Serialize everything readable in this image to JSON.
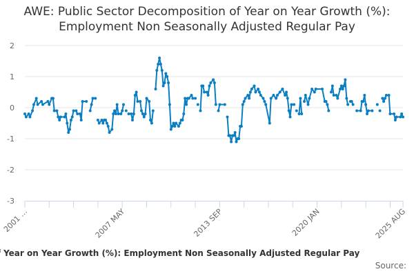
{
  "chart_data": {
    "type": "line",
    "title": "AWE: Public Sector Decomposition of Year on Year Growth (%): Employment Non Seasonally Adjusted Regular Pay",
    "caption": "AWE: Public Sector Decomposition of Year on Year Growth (%): Employment Non Seasonally Adjusted Regular Pay",
    "source_label": "Source:",
    "xlabel": "",
    "ylabel": "",
    "x_range": [
      "2001-01",
      "2025-08"
    ],
    "ylim": [
      -3,
      2
    ],
    "y_ticks": [
      2,
      1,
      0,
      -1,
      -2,
      -3
    ],
    "x_tick_labels": [
      {
        "date": "2001-01",
        "label": "2001 …"
      },
      {
        "date": "2007-05",
        "label": "2007 MAY"
      },
      {
        "date": "2013-09",
        "label": "2013 SEP"
      },
      {
        "date": "2020-01",
        "label": "2020 JAN"
      },
      {
        "date": "2025-08",
        "label": "2025 AUG"
      }
    ],
    "grid": true,
    "legend": "none",
    "colors": {
      "series": "#0a7ec2",
      "grid": "#e6e6e6",
      "axis": "#ccd6eb"
    },
    "series": [
      {
        "points": [
          [
            "2001-01",
            -0.2
          ],
          [
            "2001-02",
            -0.3
          ],
          [
            "2001-04",
            -0.2
          ],
          [
            "2001-05",
            -0.3
          ],
          [
            "2001-07",
            -0.1
          ],
          [
            "2001-08",
            0.1
          ],
          [
            "2001-10",
            0.3
          ],
          [
            "2001-11",
            0.1
          ],
          [
            "2002-02",
            0.2
          ],
          [
            "2002-03",
            0.1
          ],
          [
            "2002-07",
            0.2
          ],
          [
            "2002-08",
            0.1
          ],
          [
            "2002-10",
            0.3
          ],
          [
            "2002-11",
            0.3
          ],
          [
            "2002-12",
            -0.1
          ],
          [
            "2003-02",
            -0.1
          ],
          [
            "2003-03",
            -0.3
          ],
          [
            "2003-04",
            -0.4
          ],
          [
            "2003-05",
            -0.3
          ],
          [
            "2003-08",
            -0.3
          ],
          [
            "2003-09",
            -0.2
          ],
          [
            "2003-10",
            -0.5
          ],
          [
            "2003-11",
            -0.8
          ],
          [
            "2003-12",
            -0.7
          ],
          [
            "2004-01",
            -0.4
          ],
          [
            "2004-02",
            -0.3
          ],
          [
            "2004-03",
            -0.1
          ],
          [
            "2004-05",
            -0.1
          ],
          [
            "2004-06",
            -0.2
          ],
          [
            "2004-08",
            -0.2
          ],
          [
            "2004-09",
            -0.4
          ],
          [
            "2004-10",
            0.2
          ],
          [
            "2005-01",
            0.2
          ],
          [
            "2005-02",
            null
          ],
          [
            "2005-04",
            -0.1
          ],
          [
            "2005-05",
            0.1
          ],
          [
            "2005-06",
            0.3
          ],
          [
            "2005-08",
            0.3
          ],
          [
            "2005-09",
            null
          ],
          [
            "2005-10",
            -0.4
          ],
          [
            "2005-11",
            -0.5
          ],
          [
            "2006-01",
            -0.4
          ],
          [
            "2006-02",
            -0.5
          ],
          [
            "2006-03",
            -0.4
          ],
          [
            "2006-04",
            -0.4
          ],
          [
            "2006-05",
            -0.5
          ],
          [
            "2006-06",
            -0.6
          ],
          [
            "2006-07",
            -0.8
          ],
          [
            "2006-09",
            -0.7
          ],
          [
            "2006-10",
            -0.2
          ],
          [
            "2006-11",
            -0.1
          ],
          [
            "2006-12",
            -0.2
          ],
          [
            "2007-01",
            0.1
          ],
          [
            "2007-02",
            -0.2
          ],
          [
            "2007-04",
            -0.2
          ],
          [
            "2007-05",
            -0.1
          ],
          [
            "2007-06",
            0.1
          ],
          [
            "2007-07",
            null
          ],
          [
            "2007-08",
            -0.1
          ],
          [
            "2007-09",
            null
          ],
          [
            "2007-10",
            -0.2
          ],
          [
            "2007-12",
            -0.2
          ],
          [
            "2008-01",
            -0.4
          ],
          [
            "2008-02",
            -0.2
          ],
          [
            "2008-03",
            0.4
          ],
          [
            "2008-04",
            0.5
          ],
          [
            "2008-05",
            0.2
          ],
          [
            "2008-07",
            0.2
          ],
          [
            "2008-08",
            -0.1
          ],
          [
            "2008-09",
            -0.2
          ],
          [
            "2008-10",
            -0.3
          ],
          [
            "2008-11",
            -0.2
          ],
          [
            "2008-12",
            0.3
          ],
          [
            "2009-02",
            0.2
          ],
          [
            "2009-03",
            -0.4
          ],
          [
            "2009-04",
            -0.5
          ],
          [
            "2009-05",
            -0.1
          ],
          [
            "2009-06",
            null
          ],
          [
            "2009-07",
            0.6
          ],
          [
            "2009-08",
            1.2
          ],
          [
            "2009-09",
            1.4
          ],
          [
            "2009-10",
            1.6
          ],
          [
            "2009-11",
            1.4
          ],
          [
            "2009-12",
            1.2
          ],
          [
            "2010-01",
            0.7
          ],
          [
            "2010-02",
            0.8
          ],
          [
            "2010-03",
            1.1
          ],
          [
            "2010-04",
            1.0
          ],
          [
            "2010-05",
            0.8
          ],
          [
            "2010-06",
            0.1
          ],
          [
            "2010-07",
            -0.7
          ],
          [
            "2010-08",
            -0.6
          ],
          [
            "2010-09",
            -0.5
          ],
          [
            "2010-10",
            -0.6
          ],
          [
            "2010-11",
            -0.5
          ],
          [
            "2011-01",
            -0.6
          ],
          [
            "2011-02",
            -0.5
          ],
          [
            "2011-03",
            -0.4
          ],
          [
            "2011-04",
            -0.4
          ],
          [
            "2011-05",
            -0.2
          ],
          [
            "2011-06",
            0.3
          ],
          [
            "2011-07",
            0.1
          ],
          [
            "2011-08",
            0.3
          ],
          [
            "2011-09",
            0.3
          ],
          [
            "2011-11",
            0.4
          ],
          [
            "2011-12",
            0.3
          ],
          [
            "2012-02",
            0.3
          ],
          [
            "2012-03",
            null
          ],
          [
            "2012-04",
            0.1
          ],
          [
            "2012-05",
            null
          ],
          [
            "2012-06",
            -0.1
          ],
          [
            "2012-07",
            0.7
          ],
          [
            "2012-08",
            0.7
          ],
          [
            "2012-09",
            0.5
          ],
          [
            "2012-11",
            0.5
          ],
          [
            "2012-12",
            0.4
          ],
          [
            "2013-01",
            0.7
          ],
          [
            "2013-02",
            0.8
          ],
          [
            "2013-04",
            0.9
          ],
          [
            "2013-05",
            0.8
          ],
          [
            "2013-06",
            0.1
          ],
          [
            "2013-07",
            null
          ],
          [
            "2013-08",
            -0.1
          ],
          [
            "2013-09",
            0.1
          ],
          [
            "2014-01",
            0.1
          ],
          [
            "2014-02",
            null
          ],
          [
            "2014-03",
            -0.3
          ],
          [
            "2014-04",
            -0.9
          ],
          [
            "2014-05",
            -0.9
          ],
          [
            "2014-06",
            -1.1
          ],
          [
            "2014-07",
            -0.9
          ],
          [
            "2014-08",
            -0.9
          ],
          [
            "2014-09",
            -0.8
          ],
          [
            "2014-10",
            -1.1
          ],
          [
            "2014-11",
            -1.0
          ],
          [
            "2014-12",
            -1.0
          ],
          [
            "2015-01",
            -0.6
          ],
          [
            "2015-02",
            -0.6
          ],
          [
            "2015-03",
            0.1
          ],
          [
            "2015-04",
            0.2
          ],
          [
            "2015-05",
            0.3
          ],
          [
            "2015-07",
            0.4
          ],
          [
            "2015-08",
            0.3
          ],
          [
            "2015-09",
            0.5
          ],
          [
            "2015-10",
            0.6
          ],
          [
            "2015-12",
            0.7
          ],
          [
            "2016-01",
            0.5
          ],
          [
            "2016-03",
            0.6
          ],
          [
            "2016-04",
            0.5
          ],
          [
            "2016-05",
            0.4
          ],
          [
            "2016-07",
            0.3
          ],
          [
            "2016-08",
            0.2
          ],
          [
            "2016-09",
            0.1
          ],
          [
            "2016-12",
            -0.5
          ],
          [
            "2017-01",
            0.3
          ],
          [
            "2017-03",
            0.4
          ],
          [
            "2017-05",
            0.3
          ],
          [
            "2017-06",
            0.4
          ],
          [
            "2017-08",
            0.5
          ],
          [
            "2017-10",
            0.6
          ],
          [
            "2017-12",
            0.4
          ],
          [
            "2018-01",
            0.5
          ],
          [
            "2018-02",
            0.3
          ],
          [
            "2018-03",
            -0.1
          ],
          [
            "2018-04",
            -0.3
          ],
          [
            "2018-05",
            0.1
          ],
          [
            "2018-07",
            0.1
          ],
          [
            "2018-08",
            null
          ],
          [
            "2018-09",
            -0.1
          ],
          [
            "2018-10",
            null
          ],
          [
            "2018-11",
            -0.2
          ],
          [
            "2018-12",
            0.3
          ],
          [
            "2019-01",
            -0.2
          ],
          [
            "2019-02",
            null
          ],
          [
            "2019-03",
            0.2
          ],
          [
            "2019-04",
            0.4
          ],
          [
            "2019-06",
            0.1
          ],
          [
            "2019-07",
            0.3
          ],
          [
            "2019-09",
            0.6
          ],
          [
            "2019-11",
            0.5
          ],
          [
            "2019-12",
            0.6
          ],
          [
            "2020-05",
            0.6
          ],
          [
            "2020-07",
            0.2
          ],
          [
            "2020-08",
            0.2
          ],
          [
            "2020-09",
            0.1
          ],
          [
            "2020-10",
            -0.1
          ],
          [
            "2020-11",
            null
          ],
          [
            "2020-12",
            0.5
          ],
          [
            "2021-01",
            0.7
          ],
          [
            "2021-02",
            0.4
          ],
          [
            "2021-04",
            0.4
          ],
          [
            "2021-05",
            0.3
          ],
          [
            "2021-07",
            0.6
          ],
          [
            "2021-08",
            0.7
          ],
          [
            "2021-09",
            0.6
          ],
          [
            "2021-10",
            0.7
          ],
          [
            "2021-11",
            0.9
          ],
          [
            "2021-12",
            0.3
          ],
          [
            "2022-01",
            0.1
          ],
          [
            "2022-02",
            null
          ],
          [
            "2022-03",
            0.2
          ],
          [
            "2022-04",
            0.2
          ],
          [
            "2022-05",
            0.1
          ],
          [
            "2022-06",
            null
          ],
          [
            "2022-08",
            -0.1
          ],
          [
            "2022-11",
            -0.1
          ],
          [
            "2022-12",
            0.2
          ],
          [
            "2023-01",
            0.2
          ],
          [
            "2023-02",
            0.4
          ],
          [
            "2023-03",
            0.1
          ],
          [
            "2023-04",
            -0.2
          ],
          [
            "2023-05",
            -0.1
          ],
          [
            "2023-08",
            -0.1
          ],
          [
            "2023-09",
            null
          ],
          [
            "2023-12",
            0.1
          ],
          [
            "2024-01",
            null
          ],
          [
            "2024-02",
            -0.1
          ],
          [
            "2024-03",
            null
          ],
          [
            "2024-04",
            0.3
          ],
          [
            "2024-05",
            0.2
          ],
          [
            "2024-06",
            0.3
          ],
          [
            "2024-07",
            0.4
          ],
          [
            "2024-09",
            0.4
          ],
          [
            "2024-10",
            -0.2
          ],
          [
            "2025-01",
            -0.2
          ],
          [
            "2025-02",
            -0.4
          ],
          [
            "2025-03",
            -0.3
          ],
          [
            "2025-06",
            -0.3
          ],
          [
            "2025-07",
            -0.2
          ],
          [
            "2025-08",
            -0.3
          ]
        ]
      }
    ]
  }
}
